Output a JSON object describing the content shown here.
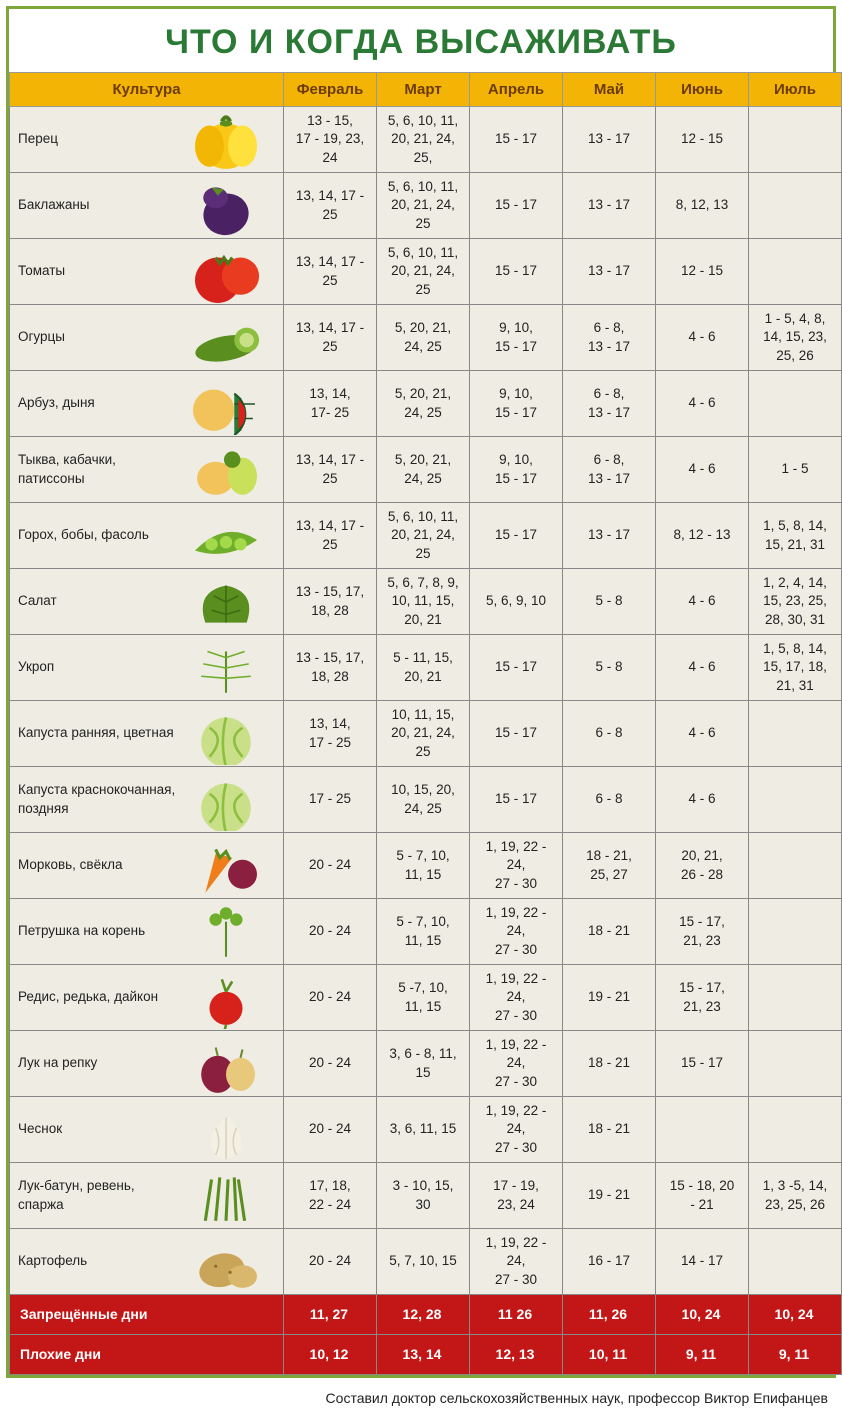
{
  "title": "ЧТО И КОГДА ВЫСАЖИВАТЬ",
  "columns": [
    "Культура",
    "Февраль",
    "Март",
    "Апрель",
    "Май",
    "Июнь",
    "Июль"
  ],
  "rows": [
    {
      "name": "Перец",
      "veg": "pepper",
      "cells": [
        "13 - 15,\n17 - 19, 23, 24",
        "5, 6, 10, 11,\n20, 21, 24,\n25,",
        "15 - 17",
        "13 - 17",
        "12 - 15",
        ""
      ]
    },
    {
      "name": "Баклажаны",
      "veg": "eggplant",
      "cells": [
        "13, 14, 17 - 25",
        "5, 6, 10, 11,\n20, 21, 24, 25",
        "15 - 17",
        "13 - 17",
        "8, 12, 13",
        ""
      ]
    },
    {
      "name": "Томаты",
      "veg": "tomato",
      "cells": [
        "13, 14, 17 - 25",
        "5, 6, 10, 11,\n20, 21, 24, 25",
        "15 - 17",
        "13 - 17",
        "12 - 15",
        ""
      ]
    },
    {
      "name": "Огурцы",
      "veg": "cucumber",
      "cells": [
        "13, 14, 17 - 25",
        "5, 20, 21,\n24, 25",
        "9, 10,\n15 - 17",
        "6 - 8,\n13 - 17",
        "4 - 6",
        "1 - 5, 4, 8,\n14, 15, 23,\n25, 26"
      ]
    },
    {
      "name": "Арбуз, дыня",
      "veg": "melon",
      "cells": [
        "13, 14,\n17- 25",
        "5, 20, 21,\n24, 25",
        "9, 10,\n15 - 17",
        "6 - 8,\n13 - 17",
        "4 - 6",
        ""
      ]
    },
    {
      "name": "Тыква, кабачки, патиссоны",
      "veg": "squash",
      "cells": [
        "13, 14, 17 - 25",
        "5, 20, 21,\n24, 25",
        "9, 10,\n15 - 17",
        "6 - 8,\n13 - 17",
        "4 - 6",
        "1 - 5"
      ]
    },
    {
      "name": "Горох, бобы, фасоль",
      "veg": "peas",
      "cells": [
        "13, 14, 17 - 25",
        "5, 6, 10, 11,\n20, 21, 24, 25",
        "15 - 17",
        "13 - 17",
        "8, 12 - 13",
        "1, 5, 8, 14,\n15, 21, 31"
      ]
    },
    {
      "name": "Салат",
      "veg": "salad",
      "cells": [
        "13 - 15, 17,\n18, 28",
        "5, 6, 7, 8, 9,\n10, 11, 15,\n20, 21",
        "5, 6, 9, 10",
        "5 - 8",
        "4 - 6",
        "1, 2, 4, 14,\n15, 23, 25,\n28, 30, 31"
      ]
    },
    {
      "name": "Укроп",
      "veg": "dill",
      "cells": [
        "13 - 15, 17,\n18, 28",
        "5 - 11, 15,\n20, 21",
        "15 - 17",
        "5 - 8",
        "4 - 6",
        "1, 5, 8, 14,\n15, 17, 18,\n21, 31"
      ]
    },
    {
      "name": "Капуста ранняя, цветная",
      "veg": "cabbage",
      "cells": [
        "13, 14,\n17 - 25",
        "10, 11, 15,\n20, 21, 24, 25",
        "15 - 17",
        "6 - 8",
        "4 - 6",
        ""
      ]
    },
    {
      "name": "Капуста краснокочанная, поздняя",
      "veg": "cabbage",
      "cells": [
        "17 - 25",
        "10, 15, 20,\n24, 25",
        "15 - 17",
        "6 - 8",
        "4 - 6",
        ""
      ]
    },
    {
      "name": "Морковь, свёкла",
      "veg": "carrot",
      "cells": [
        "20 - 24",
        "5 - 7, 10,\n11, 15",
        "1, 19, 22 - 24,\n27 - 30",
        "18 - 21,\n25, 27",
        "20, 21,\n26 - 28",
        ""
      ]
    },
    {
      "name": "Петрушка на корень",
      "veg": "parsley",
      "cells": [
        "20 - 24",
        "5 - 7, 10,\n11, 15",
        "1, 19, 22 - 24,\n27 - 30",
        "18 - 21",
        "15 - 17,\n21, 23",
        ""
      ]
    },
    {
      "name": "Редис, редька, дайкон",
      "veg": "radish",
      "cells": [
        "20 - 24",
        "5 -7, 10,\n11, 15",
        "1, 19, 22 - 24,\n27 - 30",
        "19 - 21",
        "15 - 17,\n21, 23",
        ""
      ]
    },
    {
      "name": "Лук на репку",
      "veg": "onion",
      "cells": [
        "20 - 24",
        "3, 6 - 8, 11,\n15",
        "1, 19, 22 - 24,\n27 - 30",
        "18 - 21",
        "15 - 17",
        ""
      ]
    },
    {
      "name": "Чеснок",
      "veg": "garlic",
      "cells": [
        "20 - 24",
        "3, 6, 11, 15",
        "1, 19, 22 - 24,\n27 - 30",
        "18 - 21",
        "",
        ""
      ]
    },
    {
      "name": "Лук-батун, ревень, спаржа",
      "veg": "chive",
      "cells": [
        "17, 18,\n22 - 24",
        "3 - 10, 15,\n30",
        "17 - 19,\n23, 24",
        "19 - 21",
        "15 - 18, 20\n- 21",
        "1, 3 -5, 14,\n23, 25, 26"
      ]
    },
    {
      "name": "Картофель",
      "veg": "potato",
      "cells": [
        "20 - 24",
        "5, 7, 10, 15",
        "1, 19, 22 - 24,\n27 - 30",
        "16 - 17",
        "14 - 17",
        ""
      ]
    }
  ],
  "footer_rows": [
    {
      "label": "Запрещённые дни",
      "cells": [
        "11, 27",
        "12, 28",
        "11 26",
        "11, 26",
        "10, 24",
        "10, 24"
      ]
    },
    {
      "label": "Плохие дни",
      "cells": [
        "10, 12",
        "13, 14",
        "12, 13",
        "10, 11",
        "9, 11",
        "9, 11"
      ]
    }
  ],
  "credit": "Составил доктор сельскохозяйственных наук, профессор Виктор Епифанцев",
  "colors": {
    "border": "#7fa63a",
    "title": "#2a7a35",
    "header_bg": "#f3b406",
    "header_fg": "#6b3b00",
    "cell_bg": "#efede3",
    "red_bg": "#c31717"
  }
}
